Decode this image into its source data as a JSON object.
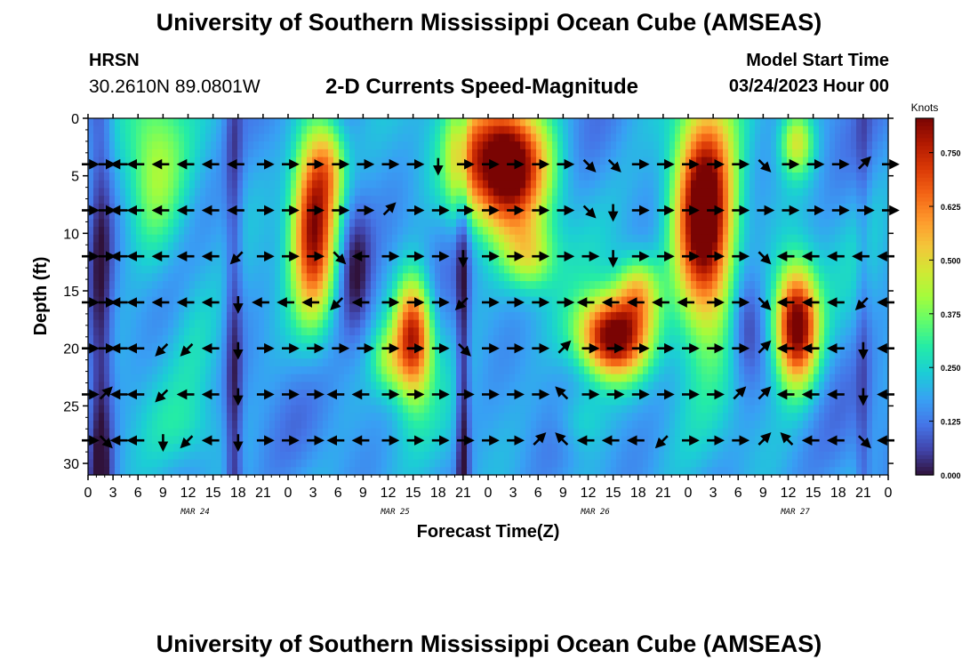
{
  "header": {
    "main_title": "University of Southern Mississippi Ocean Cube (AMSEAS)",
    "station": "HRSN",
    "coords": "30.2610N  89.0801W",
    "chart_title": "2-D Currents Speed-Magnitude",
    "model_start_label": "Model Start Time",
    "model_start_value": "03/24/2023 Hour 00"
  },
  "footer": {
    "repeat_title": "University of Southern Mississippi Ocean Cube (AMSEAS)"
  },
  "chart_data": {
    "type": "heatmap",
    "title": "2-D Currents Speed-Magnitude",
    "xlabel": "Forecast Time(Z)",
    "ylabel": "Depth (ft)",
    "x_range_hours": [
      0,
      96
    ],
    "ylim": [
      0,
      31
    ],
    "y_ticks": [
      0,
      5,
      10,
      15,
      20,
      25,
      30
    ],
    "x_tick_hours": [
      0,
      3,
      6,
      9,
      12,
      15,
      18,
      21,
      24,
      27,
      30,
      33,
      36,
      39,
      42,
      45,
      48,
      51,
      54,
      57,
      60,
      63,
      66,
      69,
      72,
      75,
      78,
      81,
      84,
      87,
      90,
      93,
      96
    ],
    "x_tick_labels": [
      "0",
      "3",
      "6",
      "9",
      "12",
      "15",
      "18",
      "21",
      "0",
      "3",
      "6",
      "9",
      "12",
      "15",
      "18",
      "21",
      "0",
      "3",
      "6",
      "9",
      "12",
      "15",
      "18",
      "21",
      "0",
      "3",
      "6",
      "9",
      "12",
      "15",
      "18",
      "21",
      "0"
    ],
    "date_labels": [
      {
        "hour": 12,
        "label": "MAR 24"
      },
      {
        "hour": 36,
        "label": "MAR 25"
      },
      {
        "hour": 60,
        "label": "MAR 26"
      },
      {
        "hour": 84,
        "label": "MAR 27"
      }
    ],
    "colorbar": {
      "title": "Knots",
      "vmin": 0,
      "vmax": 0.83,
      "ticks": [
        0.0,
        0.125,
        0.25,
        0.375,
        0.5,
        0.625,
        0.75
      ],
      "tick_labels": [
        "0.000",
        "0.125",
        "0.250",
        "0.375",
        "0.500",
        "0.625",
        "0.750"
      ]
    },
    "speed_blobs": [
      {
        "t": 8,
        "d": 5,
        "st": 3.5,
        "sd": 8,
        "v": 0.22
      },
      {
        "t": 13,
        "d": 18,
        "st": 3,
        "sd": 8,
        "v": 0.06
      },
      {
        "t": 27,
        "d": 9,
        "st": 2.5,
        "sd": 8,
        "v": 0.6
      },
      {
        "t": 29,
        "d": 4,
        "st": 2,
        "sd": 4,
        "v": 0.25
      },
      {
        "t": 32,
        "d": 13,
        "st": 2,
        "sd": 6,
        "v": -0.18
      },
      {
        "t": 36,
        "d": 21,
        "st": 2,
        "sd": 3,
        "v": 0.18
      },
      {
        "t": 39,
        "d": 19,
        "st": 2.2,
        "sd": 5,
        "v": 0.62
      },
      {
        "t": 45,
        "d": 4,
        "st": 2,
        "sd": 5,
        "v": 0.12
      },
      {
        "t": 50,
        "d": 4,
        "st": 5,
        "sd": 5.5,
        "v": 0.82
      },
      {
        "t": 53,
        "d": 12,
        "st": 3,
        "sd": 3,
        "v": 0.25
      },
      {
        "t": 63,
        "d": 19,
        "st": 4,
        "sd": 3.5,
        "v": 0.72
      },
      {
        "t": 66,
        "d": 15,
        "st": 2.5,
        "sd": 3,
        "v": 0.3
      },
      {
        "t": 74,
        "d": 9,
        "st": 3.5,
        "sd": 9,
        "v": 0.82
      },
      {
        "t": 79,
        "d": 18,
        "st": 2,
        "sd": 5,
        "v": -0.15
      },
      {
        "t": 85,
        "d": 18,
        "st": 2.5,
        "sd": 5,
        "v": 0.72
      },
      {
        "t": 85,
        "d": 2,
        "st": 2,
        "sd": 3,
        "v": 0.3
      },
      {
        "t": 12,
        "d": 27,
        "st": 4,
        "sd": 3,
        "v": 0.05
      },
      {
        "t": 59,
        "d": 26,
        "st": 3,
        "sd": 3,
        "v": 0.12
      }
    ],
    "low_columns": [
      {
        "t": 1.5,
        "w": 1.5,
        "v": -0.2
      },
      {
        "t": 17.5,
        "w": 1.0,
        "v": -0.16
      },
      {
        "t": 45,
        "w": 0.8,
        "v": -0.2
      },
      {
        "t": 93,
        "w": 0.8,
        "v": -0.08
      }
    ],
    "vector_depths": [
      4,
      8,
      12,
      16,
      20,
      24,
      28
    ],
    "vector_hours": [
      0,
      2,
      4,
      6,
      9,
      12,
      15,
      18,
      21,
      24,
      27,
      30,
      33,
      36,
      39,
      42,
      45,
      48,
      51,
      54,
      57,
      60,
      63,
      66,
      69,
      72,
      75,
      78,
      81,
      84,
      87,
      90,
      93,
      96
    ],
    "vector_directions": {
      "row_4": [
        "E",
        "E",
        "W",
        "W",
        "W",
        "W",
        "W",
        "W",
        "E",
        "E",
        "E",
        "E",
        "E",
        "E",
        "E",
        "S",
        "E",
        "E",
        "E",
        "E",
        "E",
        "SE",
        "SE",
        "E",
        "E",
        "E",
        "E",
        "E",
        "SE",
        "E",
        "E",
        "E",
        "NE",
        "E"
      ],
      "row_8": [
        "E",
        "E",
        "W",
        "W",
        "W",
        "W",
        "W",
        "W",
        "E",
        "E",
        "E",
        "E",
        "E",
        "NE",
        "E",
        "E",
        "E",
        "E",
        "E",
        "E",
        "E",
        "SE",
        "S",
        "E",
        "E",
        "E",
        "E",
        "E",
        "E",
        "E",
        "E",
        "E",
        "E",
        "E"
      ],
      "row_12": [
        "E",
        "E",
        "W",
        "W",
        "W",
        "W",
        "W",
        "SW",
        "E",
        "E",
        "E",
        "SE",
        "W",
        "E",
        "E",
        "E",
        "S",
        "E",
        "E",
        "E",
        "E",
        "E",
        "S",
        "E",
        "E",
        "E",
        "E",
        "E",
        "SE",
        "W",
        "W",
        "W",
        "W",
        "W"
      ],
      "row_16": [
        "E",
        "E",
        "W",
        "W",
        "W",
        "W",
        "W",
        "S",
        "W",
        "W",
        "W",
        "SW",
        "W",
        "E",
        "E",
        "E",
        "SW",
        "E",
        "E",
        "E",
        "E",
        "W",
        "W",
        "W",
        "W",
        "W",
        "E",
        "E",
        "SE",
        "W",
        "W",
        "W",
        "SW",
        "W"
      ],
      "row_20": [
        "E",
        "E",
        "W",
        "W",
        "SW",
        "SW",
        "W",
        "S",
        "E",
        "E",
        "E",
        "E",
        "E",
        "E",
        "E",
        "E",
        "SE",
        "E",
        "E",
        "E",
        "NE",
        "E",
        "E",
        "E",
        "E",
        "E",
        "E",
        "E",
        "NE",
        "W",
        "W",
        "W",
        "S",
        "W"
      ],
      "row_24": [
        "E",
        "NE",
        "W",
        "W",
        "SW",
        "W",
        "W",
        "S",
        "E",
        "E",
        "E",
        "W",
        "W",
        "E",
        "E",
        "E",
        "E",
        "E",
        "E",
        "E",
        "NW",
        "E",
        "E",
        "E",
        "E",
        "E",
        "E",
        "NE",
        "NE",
        "W",
        "W",
        "W",
        "S",
        "W"
      ],
      "row_28": [
        "E",
        "SE",
        "W",
        "W",
        "S",
        "SW",
        "W",
        "S",
        "E",
        "E",
        "E",
        "W",
        "W",
        "E",
        "E",
        "E",
        "E",
        "E",
        "E",
        "NE",
        "NW",
        "W",
        "W",
        "W",
        "SW",
        "E",
        "E",
        "E",
        "NE",
        "NW",
        "W",
        "W",
        "SE",
        "W"
      ]
    }
  }
}
